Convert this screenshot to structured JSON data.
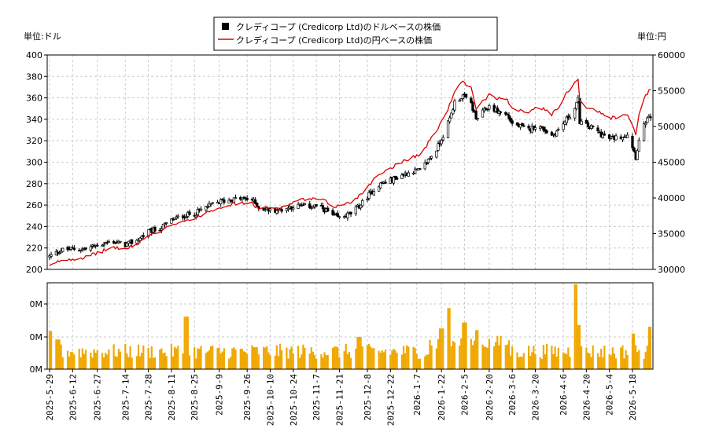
{
  "chart_data": [
    {
      "type": "candlestick+line",
      "legend": [
        {
          "name": "クレディコープ (Credicorp Ltd)のドルベースの株価",
          "color": "#000000",
          "marker": "square"
        },
        {
          "name": "クレディコープ (Credicorp Ltd)の円ベースの株価",
          "color": "#dd0000",
          "marker": "line"
        }
      ],
      "ylabel_left": "単位:ドル",
      "ylabel_right": "単位:円",
      "ylim_left": [
        200,
        400
      ],
      "yticks_left": [
        "200",
        "220",
        "240",
        "260",
        "280",
        "300",
        "320",
        "340",
        "360",
        "380",
        "400"
      ],
      "ylim_right": [
        30000,
        60000
      ],
      "yticks_right": [
        "30000",
        "35000",
        "40000",
        "45000",
        "50000",
        "55000",
        "60000"
      ],
      "grid": true,
      "usd_close_anchors": [
        [
          "2025-05-29",
          212
        ],
        [
          "2025-06-05",
          218
        ],
        [
          "2025-06-12",
          219
        ],
        [
          "2025-06-20",
          219
        ],
        [
          "2025-06-27",
          223
        ],
        [
          "2025-07-07",
          226
        ],
        [
          "2025-07-14",
          223
        ],
        [
          "2025-07-21",
          227
        ],
        [
          "2025-07-28",
          235
        ],
        [
          "2025-08-04",
          238
        ],
        [
          "2025-08-11",
          246
        ],
        [
          "2025-08-18",
          250
        ],
        [
          "2025-08-25",
          252
        ],
        [
          "2025-09-01",
          258
        ],
        [
          "2025-09-09",
          263
        ],
        [
          "2025-09-16",
          265
        ],
        [
          "2025-09-22",
          266
        ],
        [
          "2025-09-29",
          265
        ],
        [
          "2025-10-03",
          258
        ],
        [
          "2025-10-10",
          255
        ],
        [
          "2025-10-17",
          256
        ],
        [
          "2025-10-24",
          259
        ],
        [
          "2025-10-31",
          259
        ],
        [
          "2025-11-07",
          259
        ],
        [
          "2025-11-12",
          256
        ],
        [
          "2025-11-17",
          250
        ],
        [
          "2025-11-21",
          248
        ],
        [
          "2025-11-28",
          252
        ],
        [
          "2025-12-05",
          262
        ],
        [
          "2025-12-08",
          268
        ],
        [
          "2025-12-15",
          279
        ],
        [
          "2025-12-22",
          283
        ],
        [
          "2025-12-29",
          288
        ],
        [
          "2026-01-05",
          292
        ],
        [
          "2026-01-09",
          292
        ],
        [
          "2026-01-14",
          302
        ],
        [
          "2026-01-19",
          312
        ],
        [
          "2026-01-22",
          322
        ],
        [
          "2026-01-27",
          340
        ],
        [
          "2026-01-30",
          356
        ],
        [
          "2026-02-04",
          362
        ],
        [
          "2026-02-09",
          355
        ],
        [
          "2026-02-12",
          340
        ],
        [
          "2026-02-17",
          348
        ],
        [
          "2026-02-20",
          352
        ],
        [
          "2026-02-26",
          347
        ],
        [
          "2026-03-03",
          344
        ],
        [
          "2026-03-06",
          336
        ],
        [
          "2026-03-11",
          333
        ],
        [
          "2026-03-16",
          330
        ],
        [
          "2026-03-20",
          334
        ],
        [
          "2026-03-25",
          331
        ],
        [
          "2026-03-30",
          325
        ],
        [
          "2026-04-03",
          330
        ],
        [
          "2026-04-08",
          340
        ],
        [
          "2026-04-13",
          350
        ],
        [
          "2026-04-15",
          358
        ],
        [
          "2026-04-16",
          338
        ],
        [
          "2026-04-20",
          334
        ],
        [
          "2026-04-24",
          332
        ],
        [
          "2026-04-29",
          326
        ],
        [
          "2026-05-04",
          322
        ],
        [
          "2026-05-08",
          323
        ],
        [
          "2026-05-11",
          324
        ],
        [
          "2026-05-15",
          326
        ],
        [
          "2026-05-18",
          315
        ],
        [
          "2026-05-20",
          305
        ],
        [
          "2026-05-22",
          320
        ],
        [
          "2026-05-26",
          338
        ],
        [
          "2026-05-29",
          342
        ]
      ],
      "jpy_close_anchors": [
        [
          "2025-05-29",
          30400
        ],
        [
          "2025-06-05",
          31300
        ],
        [
          "2025-06-12",
          31500
        ],
        [
          "2025-06-20",
          31700
        ],
        [
          "2025-06-27",
          32300
        ],
        [
          "2025-07-07",
          33100
        ],
        [
          "2025-07-14",
          32800
        ],
        [
          "2025-07-21",
          33500
        ],
        [
          "2025-07-28",
          34800
        ],
        [
          "2025-08-04",
          35100
        ],
        [
          "2025-08-11",
          36300
        ],
        [
          "2025-08-18",
          36800
        ],
        [
          "2025-08-25",
          37100
        ],
        [
          "2025-09-01",
          38000
        ],
        [
          "2025-09-09",
          38700
        ],
        [
          "2025-09-16",
          39100
        ],
        [
          "2025-09-22",
          39300
        ],
        [
          "2025-09-29",
          39200
        ],
        [
          "2025-10-03",
          38500
        ],
        [
          "2025-10-10",
          38600
        ],
        [
          "2025-10-17",
          38600
        ],
        [
          "2025-10-24",
          39400
        ],
        [
          "2025-10-31",
          39800
        ],
        [
          "2025-11-07",
          39800
        ],
        [
          "2025-11-12",
          39600
        ],
        [
          "2025-11-17",
          38800
        ],
        [
          "2025-11-21",
          38900
        ],
        [
          "2025-11-28",
          39400
        ],
        [
          "2025-12-05",
          40700
        ],
        [
          "2025-12-08",
          41600
        ],
        [
          "2025-12-15",
          43300
        ],
        [
          "2025-12-22",
          44200
        ],
        [
          "2025-12-29",
          45100
        ],
        [
          "2026-01-05",
          45800
        ],
        [
          "2026-01-09",
          46000
        ],
        [
          "2026-01-14",
          47700
        ],
        [
          "2026-01-19",
          49400
        ],
        [
          "2026-01-22",
          50700
        ],
        [
          "2026-01-27",
          53000
        ],
        [
          "2026-01-30",
          55000
        ],
        [
          "2026-02-04",
          56200
        ],
        [
          "2026-02-09",
          55300
        ],
        [
          "2026-02-12",
          52600
        ],
        [
          "2026-02-17",
          53700
        ],
        [
          "2026-02-20",
          54500
        ],
        [
          "2026-02-26",
          53900
        ],
        [
          "2026-03-03",
          53600
        ],
        [
          "2026-03-06",
          52600
        ],
        [
          "2026-03-11",
          52300
        ],
        [
          "2026-03-16",
          52000
        ],
        [
          "2026-03-20",
          52800
        ],
        [
          "2026-03-25",
          52400
        ],
        [
          "2026-03-30",
          51700
        ],
        [
          "2026-04-03",
          52600
        ],
        [
          "2026-04-08",
          54600
        ],
        [
          "2026-04-13",
          56200
        ],
        [
          "2026-04-15",
          56800
        ],
        [
          "2026-04-16",
          53600
        ],
        [
          "2026-04-20",
          52700
        ],
        [
          "2026-04-24",
          52500
        ],
        [
          "2026-04-29",
          51800
        ],
        [
          "2026-05-04",
          51200
        ],
        [
          "2026-05-08",
          51300
        ],
        [
          "2026-05-11",
          51400
        ],
        [
          "2026-05-15",
          51600
        ],
        [
          "2026-05-18",
          50100
        ],
        [
          "2026-05-20",
          49000
        ],
        [
          "2026-05-22",
          51500
        ],
        [
          "2026-05-26",
          54400
        ],
        [
          "2026-05-29",
          55100
        ]
      ]
    },
    {
      "type": "bar",
      "yticks": [
        "0M",
        "0M",
        "0M"
      ],
      "bar_color": "#f0a800",
      "xticks": [
        "2025-5-29",
        "2025-6-12",
        "2025-6-27",
        "2025-7-14",
        "2025-7-28",
        "2025-8-11",
        "2025-8-25",
        "2025-9-9",
        "2025-9-26",
        "2025-10-10",
        "2025-10-24",
        "2025-11-7",
        "2025-11-21",
        "2025-12-8",
        "2025-12-22",
        "2026-1-7",
        "2026-1-22",
        "2026-2-5",
        "2026-2-20",
        "2026-3-6",
        "2026-3-20",
        "2026-4-6",
        "2026-4-20",
        "2026-5-4",
        "2026-5-18"
      ],
      "volume_note": "relative volume 0-1",
      "volume_peaks": [
        [
          "2025-05-29",
          0.45
        ],
        [
          "2025-06-03",
          0.35
        ],
        [
          "2025-08-20",
          0.62
        ],
        [
          "2025-12-03",
          0.38
        ],
        [
          "2026-01-22",
          0.48
        ],
        [
          "2026-01-26",
          0.72
        ],
        [
          "2026-02-05",
          0.55
        ],
        [
          "2026-02-13",
          0.46
        ],
        [
          "2026-04-13",
          1.0
        ],
        [
          "2026-04-15",
          0.52
        ],
        [
          "2026-05-18",
          0.42
        ],
        [
          "2026-05-29",
          0.5
        ]
      ]
    }
  ]
}
